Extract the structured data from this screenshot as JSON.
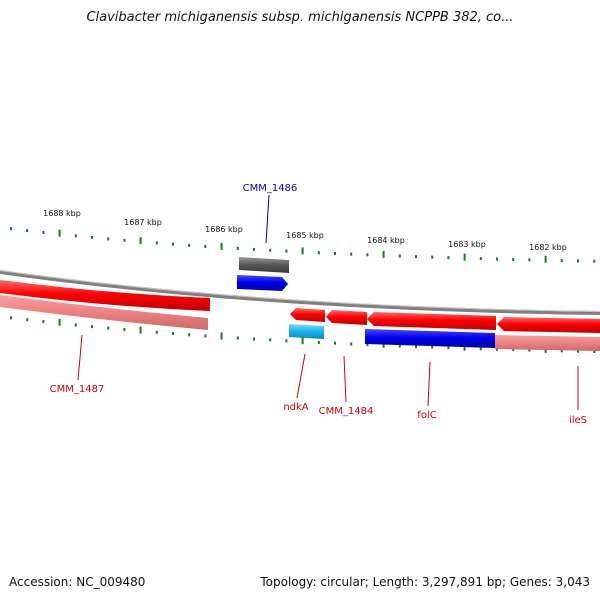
{
  "title": "Clavibacter michiganensis subsp. michiganensis NCPPB 382, co...",
  "footer": {
    "accession": "Accession: NC_009480",
    "topology": "Topology: circular; Length: 3,297,891 bp; Genes: 3,043"
  },
  "scale_labels": [
    "1688 kbp",
    "1687 kbp",
    "1686 kbp",
    "1685 kbp",
    "1684 kbp",
    "1683 kbp",
    "1682 kbp"
  ],
  "gene_labels": [
    {
      "name": "CMM_1486",
      "color": "#0000cc"
    },
    {
      "name": "CMM_1487",
      "color": "#cc0000"
    },
    {
      "name": "ndkA",
      "color": "#cc0000"
    },
    {
      "name": "CMM_1484",
      "color": "#cc0000"
    },
    {
      "name": "folC",
      "color": "#cc0000"
    },
    {
      "name": "ileS",
      "color": "#cc0000"
    }
  ],
  "colors": {
    "backbone": "#888888",
    "tick": "#1a7a1a",
    "gene_red": "#ff0000",
    "gene_pink": "#f08080",
    "gene_blue": "#0000ee",
    "gene_cyan": "#19b4ee",
    "gene_gray": "#555555"
  }
}
